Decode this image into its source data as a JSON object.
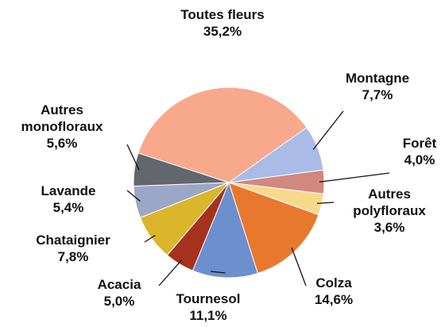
{
  "chart_data": {
    "type": "pie",
    "categories": [
      "Toutes fleurs",
      "Montagne",
      "Forêt",
      "Autres polyfloraux",
      "Colza",
      "Tournesol",
      "Acacia",
      "Chataignier",
      "Lavande",
      "Autres monofloraux"
    ],
    "values": [
      35.2,
      7.7,
      4.0,
      3.6,
      14.6,
      11.1,
      5.0,
      7.8,
      5.4,
      5.6
    ],
    "value_labels": [
      "35,2%",
      "7,7%",
      "4,0%",
      "3,6%",
      "14,6%",
      "11,1%",
      "5,0%",
      "7,8%",
      "5,4%",
      "5,6%"
    ],
    "colors": [
      "#f8a98c",
      "#a9bbe6",
      "#d2877f",
      "#f7d98c",
      "#e9782f",
      "#6e8fcd",
      "#a6321e",
      "#dbb52b",
      "#9ba7c6",
      "#62676d"
    ]
  }
}
